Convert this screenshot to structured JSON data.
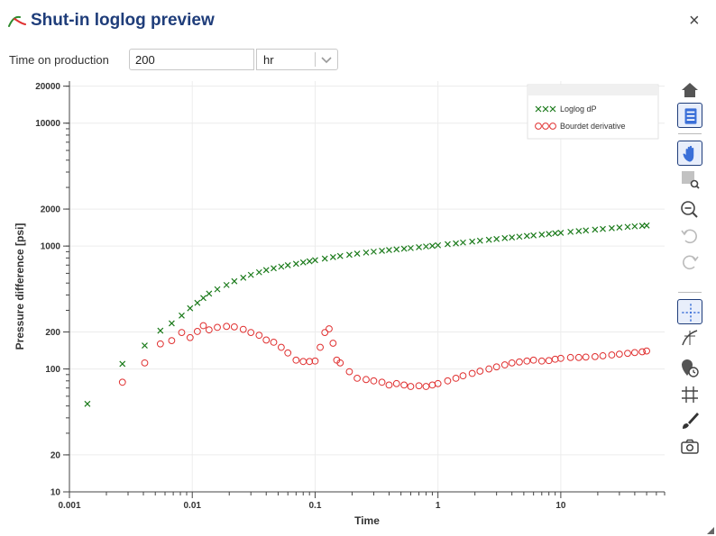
{
  "window": {
    "title": "Shut-in loglog preview",
    "close_label": "×"
  },
  "controls": {
    "time_on_production_label": "Time on production",
    "time_on_production_value": "200",
    "unit_value": "hr"
  },
  "toolbar": {
    "home": "home-icon",
    "legend": "legend-icon",
    "pan": "pan-icon",
    "box_zoom": "box-zoom-icon",
    "zoom_out": "zoom-out-icon",
    "undo": "undo-icon",
    "redo": "redo-icon",
    "crosshair": "crosshair-icon",
    "hover": "hover-icon",
    "clock_pin": "clock-pin-icon",
    "grid": "grid-icon",
    "brush": "brush-icon",
    "camera": "camera-icon"
  },
  "colors": {
    "title": "#1f3d7a",
    "series_dp": "#1a7a1a",
    "series_deriv": "#e03030",
    "grid": "#ececec"
  },
  "chart_data": {
    "type": "scatter",
    "xscale": "log",
    "yscale": "log",
    "xlabel": "Time",
    "ylabel": "Pressure difference [psi]",
    "xlim": [
      0.001,
      70
    ],
    "ylim": [
      10,
      22000
    ],
    "xticks": [
      0.001,
      0.01,
      0.1,
      1,
      10
    ],
    "xtick_labels": [
      "0.001",
      "0.01",
      "0.1",
      "1",
      "10"
    ],
    "yticks": [
      10,
      20,
      100,
      200,
      1000,
      2000,
      10000,
      20000
    ],
    "ytick_labels": [
      "10",
      "20",
      "100",
      "200",
      "1000",
      "2000",
      "10000",
      "20000"
    ],
    "legend_position": "top-right",
    "series": [
      {
        "name": "Loglog dP",
        "marker": "x",
        "color": "#1a7a1a",
        "x": [
          0.0014,
          0.0027,
          0.0041,
          0.0055,
          0.0068,
          0.0082,
          0.0096,
          0.011,
          0.0123,
          0.0137,
          0.016,
          0.019,
          0.022,
          0.026,
          0.03,
          0.035,
          0.04,
          0.046,
          0.053,
          0.06,
          0.07,
          0.08,
          0.09,
          0.1,
          0.12,
          0.14,
          0.16,
          0.19,
          0.22,
          0.26,
          0.3,
          0.35,
          0.4,
          0.46,
          0.53,
          0.6,
          0.7,
          0.8,
          0.9,
          1,
          1.2,
          1.4,
          1.6,
          1.9,
          2.2,
          2.6,
          3,
          3.5,
          4,
          4.6,
          5.3,
          6,
          7,
          8,
          9,
          10,
          12,
          14,
          16,
          19,
          22,
          26,
          30,
          35,
          40,
          46,
          50
        ],
        "y": [
          52,
          110,
          155,
          205,
          235,
          272,
          312,
          345,
          378,
          410,
          445,
          482,
          517,
          552,
          583,
          612,
          638,
          660,
          680,
          698,
          718,
          736,
          752,
          767,
          790,
          812,
          830,
          850,
          868,
          885,
          900,
          915,
          928,
          940,
          952,
          963,
          978,
          992,
          1004,
          1015,
          1035,
          1052,
          1068,
          1088,
          1105,
          1125,
          1142,
          1160,
          1176,
          1192,
          1208,
          1222,
          1240,
          1256,
          1270,
          1282,
          1305,
          1323,
          1340,
          1360,
          1378,
          1398,
          1415,
          1432,
          1447,
          1462,
          1470
        ]
      },
      {
        "name": "Bourdet derivative",
        "marker": "o",
        "color": "#e03030",
        "x": [
          0.0027,
          0.0041,
          0.0055,
          0.0068,
          0.0082,
          0.0096,
          0.011,
          0.0123,
          0.0137,
          0.016,
          0.019,
          0.022,
          0.026,
          0.03,
          0.035,
          0.04,
          0.046,
          0.053,
          0.06,
          0.07,
          0.08,
          0.09,
          0.1,
          0.11,
          0.12,
          0.13,
          0.14,
          0.15,
          0.16,
          0.19,
          0.22,
          0.26,
          0.3,
          0.35,
          0.4,
          0.46,
          0.53,
          0.6,
          0.7,
          0.8,
          0.9,
          1,
          1.2,
          1.4,
          1.6,
          1.9,
          2.2,
          2.6,
          3,
          3.5,
          4,
          4.6,
          5.3,
          6,
          7,
          8,
          9,
          10,
          12,
          14,
          16,
          19,
          22,
          26,
          30,
          35,
          40,
          46,
          50
        ],
        "y": [
          78,
          112,
          160,
          170,
          198,
          180,
          202,
          225,
          208,
          218,
          222,
          220,
          210,
          198,
          188,
          172,
          165,
          150,
          135,
          118,
          115,
          115,
          116,
          150,
          198,
          212,
          162,
          118,
          112,
          95,
          84,
          82,
          80,
          78,
          74,
          76,
          74,
          72,
          73,
          72,
          74,
          76,
          80,
          84,
          88,
          92,
          96,
          100,
          104,
          108,
          112,
          114,
          116,
          118,
          116,
          117,
          120,
          122,
          124,
          124,
          125,
          126,
          128,
          130,
          132,
          134,
          136,
          138,
          140
        ]
      }
    ]
  }
}
